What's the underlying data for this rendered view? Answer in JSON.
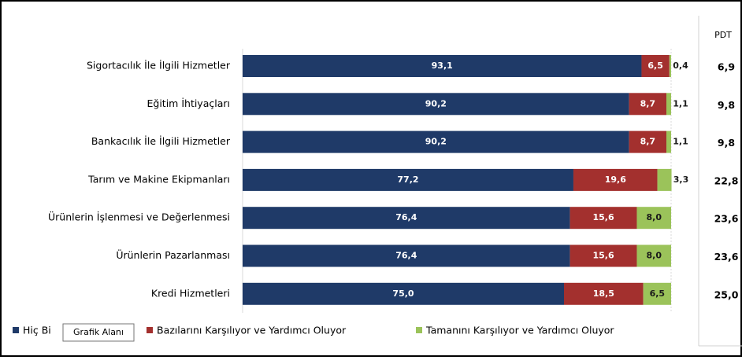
{
  "chart_data": {
    "type": "stacked_barh",
    "categories": [
      "Sigortacılık İle İlgili Hizmetler",
      "Eğitim İhtiyaçları",
      "Bankacılık İle İlgili Hizmetler",
      "Tarım ve Makine Ekipmanları",
      "Ürünlerin İşlenmesi ve Değerlenmesi",
      "Ürünlerin Pazarlanması",
      "Kredi  Hizmetleri"
    ],
    "series": [
      {
        "name": "Hiç Bi",
        "color": "#1f3a68",
        "label_color": "#ffffff",
        "values": [
          93.1,
          90.2,
          90.2,
          77.2,
          76.4,
          76.4,
          75.0
        ],
        "value_labels": [
          "93,1",
          "90,2",
          "90,2",
          "77,2",
          "76,4",
          "76,4",
          "75,0"
        ]
      },
      {
        "name": "Bazılarını Karşılıyor ve Yardımcı Oluyor",
        "color": "#a3302e",
        "label_color": "#ffffff",
        "values": [
          6.5,
          8.7,
          8.7,
          19.6,
          15.6,
          15.6,
          18.5
        ],
        "value_labels": [
          "6,5",
          "8,7",
          "8,7",
          "19,6",
          "15,6",
          "15,6",
          "18,5"
        ]
      },
      {
        "name": "Tamanını Karşılıyor ve Yardımcı Oluyor",
        "color": "#9bc35a",
        "label_color": "#1a1a1a",
        "values": [
          0.4,
          1.1,
          1.1,
          3.3,
          8.0,
          8.0,
          6.5
        ],
        "value_labels": [
          "0,4",
          "1,1",
          "1,1",
          "3,3",
          "8,0",
          "8,0",
          "6,5"
        ]
      }
    ],
    "xlim": [
      0,
      100
    ],
    "pdt": {
      "title": "PDT",
      "labels": [
        "6,9",
        "9,8",
        "9,8",
        "22,8",
        "23,6",
        "23,6",
        "25,0"
      ]
    },
    "tooltip": "Grafik Alanı"
  }
}
